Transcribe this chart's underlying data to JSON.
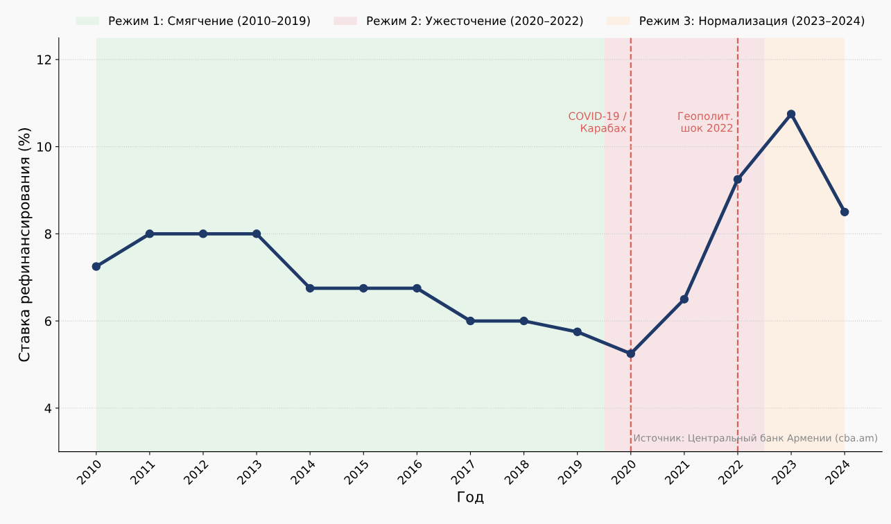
{
  "chart_data": {
    "type": "line",
    "xlabel": "Год",
    "ylabel": "Ставка рефинансирования (%)",
    "x": [
      2010,
      2011,
      2012,
      2013,
      2014,
      2015,
      2016,
      2017,
      2018,
      2019,
      2020,
      2021,
      2022,
      2023,
      2024
    ],
    "series": [
      {
        "color": "#1f3a68",
        "values": [
          7.25,
          8,
          8,
          8,
          6.75,
          6.75,
          6.75,
          6,
          6,
          5.75,
          5.25,
          6.5,
          9.25,
          10.75,
          8.5
        ]
      }
    ],
    "marker": "circle",
    "line_style": "solid",
    "xlim": [
      2009.3,
      2024.7
    ],
    "xticks": [
      2010,
      2011,
      2012,
      2013,
      2014,
      2015,
      2016,
      2017,
      2018,
      2019,
      2020,
      2021,
      2022,
      2023,
      2024
    ],
    "ylim": [
      3,
      12.5
    ],
    "yticks": [
      4,
      6,
      8,
      10,
      12
    ],
    "grid": "y",
    "legend": "top",
    "bands": [
      {
        "axis": "x",
        "from": 2010,
        "to": 2019.5,
        "label": "Режим 1: Смягчение (2010–2019)",
        "color": "#e6f4ea"
      },
      {
        "axis": "x",
        "from": 2019.5,
        "to": 2022.5,
        "label": "Режим 2: Ужесточение (2020–2022)",
        "color": "#f6e4e6"
      },
      {
        "axis": "x",
        "from": 2022.5,
        "to": 2024,
        "label": "Режим 3: Нормализация (2023–2024)",
        "color": "#fcefe3"
      }
    ],
    "ref_lines": [
      {
        "axis": "x",
        "value": 2020,
        "label": "COVID-19 /\nКарабах",
        "color": "#d9605a",
        "line_style": "dashed"
      },
      {
        "axis": "x",
        "value": 2022,
        "label": "Геополит.\nшок 2022",
        "color": "#d9605a",
        "line_style": "dashed"
      }
    ],
    "annotations": [
      "Источник: Центральный банк Армении (cba.am)"
    ]
  }
}
